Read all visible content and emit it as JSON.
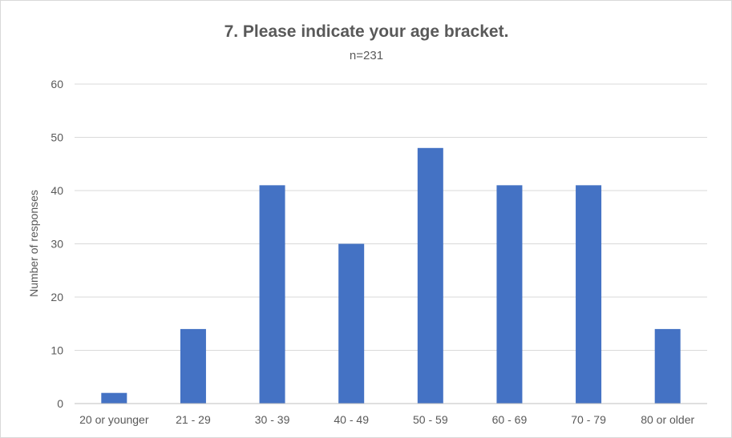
{
  "chart_data": {
    "type": "bar",
    "title": "7. Please indicate your age bracket.",
    "subtitle": "n=231",
    "xlabel": "",
    "ylabel": "Number of responses",
    "categories": [
      "20 or younger",
      "21 - 29",
      "30 - 39",
      "40 - 49",
      "50 - 59",
      "60 - 69",
      "70 - 79",
      "80 or older"
    ],
    "values": [
      2,
      14,
      41,
      30,
      48,
      41,
      41,
      14
    ],
    "ylim": [
      0,
      60
    ],
    "yticks": [
      0,
      10,
      20,
      30,
      40,
      50,
      60
    ],
    "grid": true,
    "legend": "none",
    "colors": {
      "bar": "#4472c4",
      "grid": "#d9d9d9",
      "text": "#595959",
      "axis": "#bfbfbf"
    }
  }
}
